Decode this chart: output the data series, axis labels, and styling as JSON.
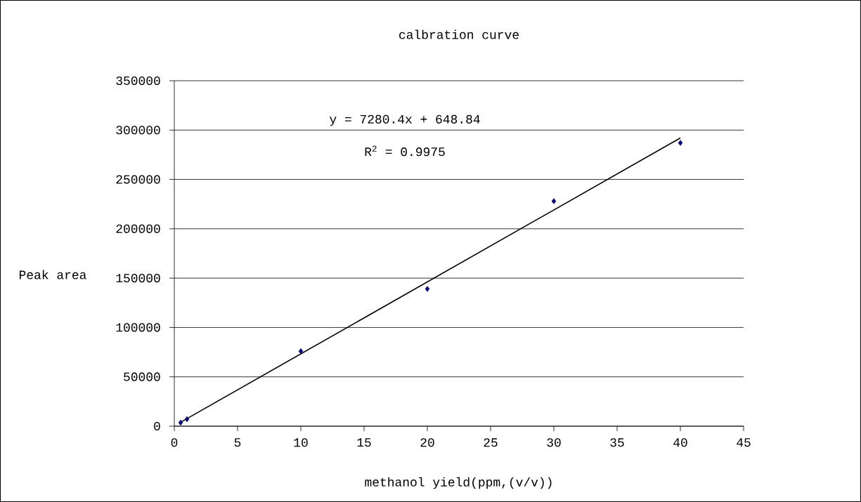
{
  "chart_data": {
    "type": "scatter",
    "title": "calbration curve",
    "xlabel": "methanol yield(ppm,(v/v))",
    "ylabel": "Peak area",
    "xlim": [
      0,
      45
    ],
    "xticks": [
      0,
      5,
      10,
      15,
      20,
      25,
      30,
      35,
      40,
      45
    ],
    "ylim": [
      0,
      350000
    ],
    "yticks": [
      0,
      50000,
      100000,
      150000,
      200000,
      250000,
      300000,
      350000
    ],
    "grid": "y",
    "marker": "diamond",
    "annotations": [
      "y = 7280.4x + 648.84",
      "R$^{2}$ = 0.9975"
    ],
    "series": [
      {
        "color": "#000080",
        "x": [
          0.5,
          1,
          10,
          20,
          30,
          40
        ],
        "values": [
          3600,
          7100,
          76000,
          139000,
          228000,
          287000
        ]
      },
      {
        "type": "line",
        "color": "#000000",
        "marker": "none",
        "x": [
          0.5,
          40
        ],
        "values": [
          4000,
          292000
        ]
      }
    ]
  }
}
